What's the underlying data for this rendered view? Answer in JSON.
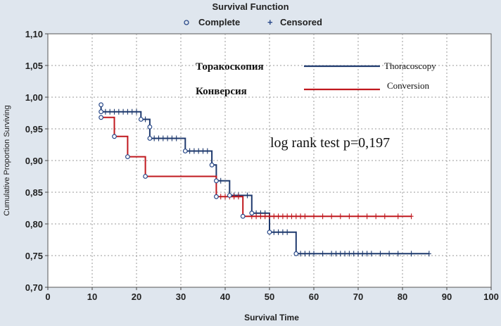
{
  "chart_data": {
    "type": "line",
    "title": "Survival Function",
    "xlabel": "Survival Time",
    "ylabel": "Cumulative Proportion Surviving",
    "xlim": [
      0,
      100
    ],
    "ylim": [
      0.7,
      1.1
    ],
    "x_ticks": [
      0,
      10,
      20,
      30,
      40,
      50,
      60,
      70,
      80,
      90,
      100
    ],
    "x_tick_labels": [
      "0",
      "10",
      "20",
      "30",
      "40",
      "50",
      "60",
      "70",
      "80",
      "90",
      "100"
    ],
    "y_ticks": [
      0.7,
      0.75,
      0.8,
      0.85,
      0.9,
      0.95,
      1.0,
      1.05,
      1.1
    ],
    "y_tick_labels": [
      "0,70",
      "0,75",
      "0,80",
      "0,85",
      "0,90",
      "0,95",
      "1,00",
      "1,05",
      "1,10"
    ],
    "grid": true,
    "legend": {
      "placement": "top",
      "items": [
        {
          "label": "Complete",
          "symbol": "circle"
        },
        {
          "label": "Censored",
          "symbol": "plus"
        }
      ]
    },
    "annotation": "log rank test p=0,197",
    "series_legend": [
      {
        "russian": "Торакоскопия",
        "english": "Thoracoscopy",
        "color": "#1f3a6e"
      },
      {
        "russian": "Конверсия",
        "english": "Conversion",
        "color": "#c0181e"
      }
    ],
    "series": [
      {
        "name": "Thoracoscopy",
        "color": "#1f3a6e",
        "steps": [
          [
            12,
            0.988
          ],
          [
            12,
            0.977
          ],
          [
            21,
            0.965
          ],
          [
            23,
            0.953
          ],
          [
            23,
            0.935
          ],
          [
            31,
            0.915
          ],
          [
            37,
            0.893
          ],
          [
            38,
            0.868
          ],
          [
            41,
            0.845
          ],
          [
            46,
            0.817
          ],
          [
            50,
            0.787
          ],
          [
            56,
            0.753
          ]
        ],
        "end_x": 86,
        "censored": [
          [
            13,
            0.977
          ],
          [
            14,
            0.977
          ],
          [
            15,
            0.977
          ],
          [
            16,
            0.977
          ],
          [
            17,
            0.977
          ],
          [
            18,
            0.977
          ],
          [
            19,
            0.977
          ],
          [
            20,
            0.977
          ],
          [
            22,
            0.965
          ],
          [
            24,
            0.935
          ],
          [
            25,
            0.935
          ],
          [
            26,
            0.935
          ],
          [
            27,
            0.935
          ],
          [
            28,
            0.935
          ],
          [
            29,
            0.935
          ],
          [
            32,
            0.915
          ],
          [
            33,
            0.915
          ],
          [
            34,
            0.915
          ],
          [
            35,
            0.915
          ],
          [
            36,
            0.915
          ],
          [
            39,
            0.868
          ],
          [
            42,
            0.845
          ],
          [
            43,
            0.845
          ],
          [
            45,
            0.845
          ],
          [
            47,
            0.817
          ],
          [
            48,
            0.817
          ],
          [
            49,
            0.817
          ],
          [
            51,
            0.787
          ],
          [
            52,
            0.787
          ],
          [
            53,
            0.787
          ],
          [
            54,
            0.787
          ],
          [
            57,
            0.753
          ],
          [
            58,
            0.753
          ],
          [
            59,
            0.753
          ],
          [
            60,
            0.753
          ],
          [
            62,
            0.753
          ],
          [
            64,
            0.753
          ],
          [
            65,
            0.753
          ],
          [
            66,
            0.753
          ],
          [
            67,
            0.753
          ],
          [
            68,
            0.753
          ],
          [
            69,
            0.753
          ],
          [
            70,
            0.753
          ],
          [
            71,
            0.753
          ],
          [
            72,
            0.753
          ],
          [
            73,
            0.753
          ],
          [
            75,
            0.753
          ],
          [
            77,
            0.753
          ],
          [
            79,
            0.753
          ],
          [
            82,
            0.753
          ],
          [
            86,
            0.753
          ]
        ]
      },
      {
        "name": "Conversion",
        "color": "#c0181e",
        "steps": [
          [
            12,
            0.968
          ],
          [
            15,
            0.938
          ],
          [
            18,
            0.906
          ],
          [
            22,
            0.875
          ],
          [
            38,
            0.843
          ],
          [
            44,
            0.812
          ]
        ],
        "end_x": 82,
        "censored": [
          [
            39,
            0.843
          ],
          [
            40,
            0.843
          ],
          [
            41,
            0.843
          ],
          [
            42,
            0.843
          ],
          [
            43,
            0.843
          ],
          [
            46,
            0.812
          ],
          [
            47,
            0.812
          ],
          [
            48,
            0.812
          ],
          [
            49,
            0.812
          ],
          [
            50,
            0.812
          ],
          [
            51,
            0.812
          ],
          [
            52,
            0.812
          ],
          [
            53,
            0.812
          ],
          [
            54,
            0.812
          ],
          [
            55,
            0.812
          ],
          [
            56,
            0.812
          ],
          [
            57,
            0.812
          ],
          [
            58,
            0.812
          ],
          [
            60,
            0.812
          ],
          [
            62,
            0.812
          ],
          [
            64,
            0.812
          ],
          [
            66,
            0.812
          ],
          [
            68,
            0.812
          ],
          [
            70,
            0.812
          ],
          [
            72,
            0.812
          ],
          [
            74,
            0.812
          ],
          [
            76,
            0.812
          ],
          [
            79,
            0.812
          ],
          [
            82,
            0.812
          ]
        ]
      }
    ]
  }
}
